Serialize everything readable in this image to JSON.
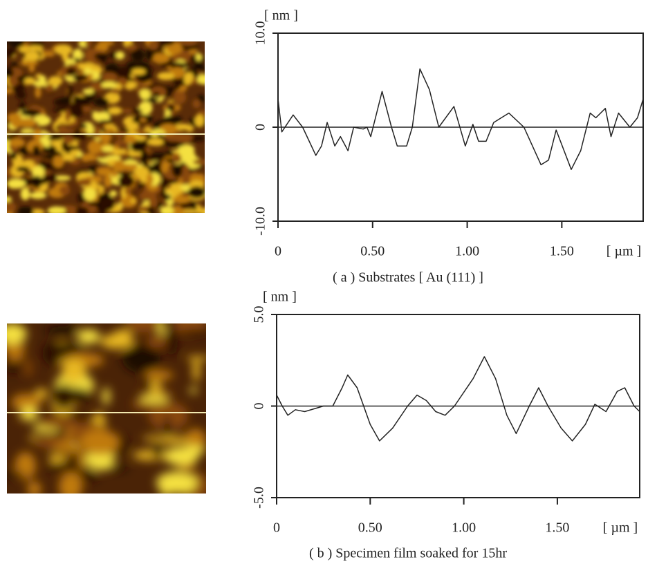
{
  "chart_data": [
    {
      "type": "line",
      "unit_y": "[ nm ]",
      "unit_x": "[ µm ]",
      "caption": "( a ) Substrates [ Au (111) ]",
      "xlim": [
        0,
        1.93
      ],
      "ylim": [
        -10,
        10
      ],
      "xticks": [
        0,
        {
          "value": 0.5,
          "label": "0.50"
        },
        {
          "value": 1,
          "label": "1.00"
        },
        {
          "value": 1.5,
          "label": "1.50"
        }
      ],
      "yticks": [
        {
          "value": -10,
          "label": "-10.0"
        },
        0,
        {
          "value": 10,
          "label": "10.0"
        }
      ],
      "color": "#222222",
      "x": [
        0,
        0.02,
        0.08,
        0.13,
        0.2,
        0.23,
        0.26,
        0.3,
        0.33,
        0.37,
        0.4,
        0.45,
        0.47,
        0.49,
        0.55,
        0.6,
        0.63,
        0.68,
        0.71,
        0.75,
        0.8,
        0.85,
        0.93,
        0.99,
        1.03,
        1.06,
        1.1,
        1.14,
        1.22,
        1.3,
        1.39,
        1.43,
        1.47,
        1.55,
        1.6,
        1.65,
        1.68,
        1.73,
        1.76,
        1.8,
        1.86,
        1.9,
        1.93
      ],
      "values": [
        3,
        -0.5,
        1.3,
        0,
        -3,
        -2,
        0.5,
        -2,
        -1,
        -2.5,
        0,
        -0.2,
        0,
        -1,
        3.8,
        0,
        -2,
        -2,
        0,
        6.2,
        4,
        0,
        2.2,
        -2,
        0.3,
        -1.5,
        -1.5,
        0.5,
        1.5,
        0,
        -4,
        -3.5,
        -0.3,
        -4.5,
        -2.5,
        1.5,
        1,
        2,
        -1,
        1.5,
        0,
        1,
        3
      ]
    },
    {
      "type": "line",
      "unit_y": "[ nm ]",
      "unit_x": "[ µm ]",
      "caption": "( b ) Specimen film soaked for 15hr",
      "xlim": [
        0,
        1.94
      ],
      "ylim": [
        -5,
        5
      ],
      "xticks": [
        0,
        {
          "value": 0.5,
          "label": "0.50"
        },
        {
          "value": 1,
          "label": "1.00"
        },
        {
          "value": 1.5,
          "label": "1.50"
        }
      ],
      "yticks": [
        {
          "value": -5,
          "label": "-5.0"
        },
        0,
        {
          "value": 5,
          "label": "5.0"
        }
      ],
      "color": "#222222",
      "x": [
        0,
        0.03,
        0.06,
        0.1,
        0.15,
        0.25,
        0.3,
        0.35,
        0.38,
        0.43,
        0.5,
        0.55,
        0.62,
        0.7,
        0.75,
        0.8,
        0.85,
        0.9,
        0.95,
        1.05,
        1.11,
        1.17,
        1.23,
        1.28,
        1.35,
        1.4,
        1.45,
        1.52,
        1.58,
        1.65,
        1.7,
        1.76,
        1.82,
        1.86,
        1.91,
        1.94
      ],
      "values": [
        0.6,
        0,
        -0.5,
        -0.2,
        -0.3,
        0,
        0,
        1,
        1.7,
        1,
        -1,
        -1.9,
        -1.2,
        0,
        0.6,
        0.3,
        -0.3,
        -0.5,
        0,
        1.5,
        2.7,
        1.5,
        -0.5,
        -1.5,
        0,
        1,
        0,
        -1.2,
        -1.9,
        -1,
        0.1,
        -0.3,
        0.8,
        1,
        0,
        -0.3
      ]
    }
  ]
}
